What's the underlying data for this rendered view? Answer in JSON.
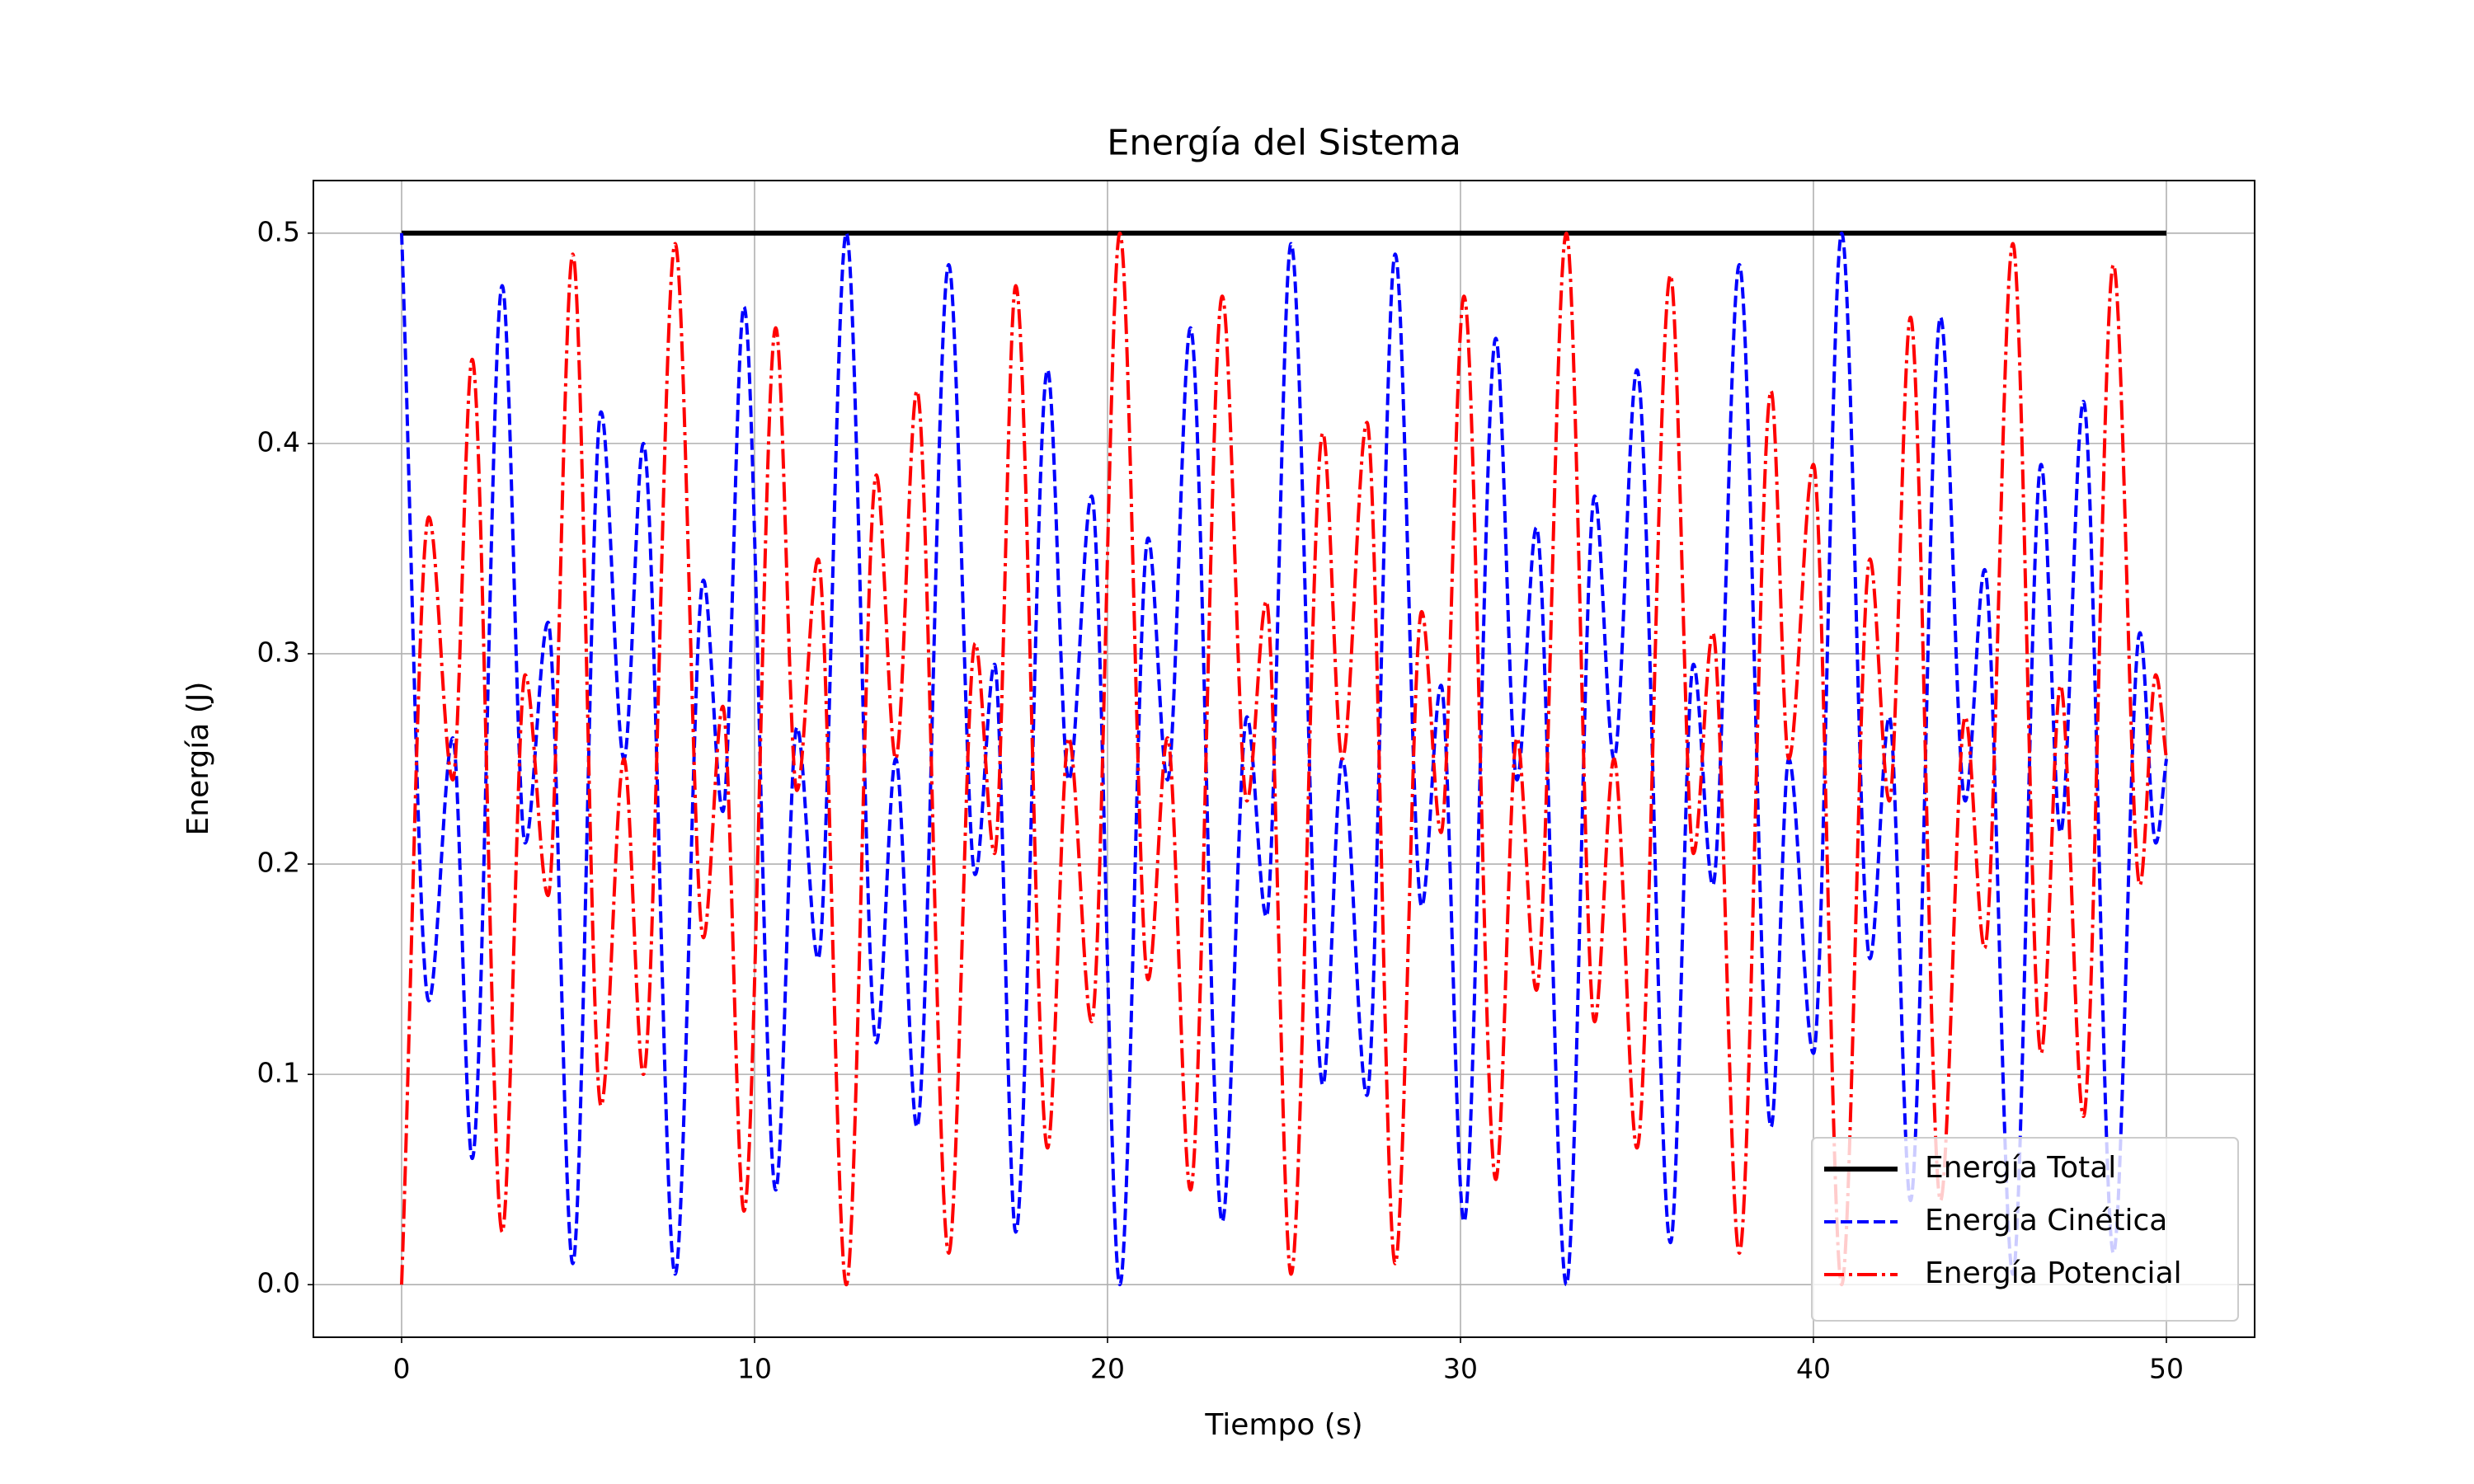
{
  "chart_data": {
    "type": "line",
    "title": "Energía del Sistema",
    "xlabel": "Tiempo (s)",
    "ylabel": "Energía (J)",
    "x": [
      0,
      0.77,
      1.45,
      2.0,
      2.85,
      3.5,
      4.15,
      4.85,
      5.65,
      6.3,
      6.85,
      7.75,
      8.55,
      9.1,
      9.7,
      10.6,
      11.2,
      11.8,
      12.6,
      13.45,
      14.0,
      14.6,
      15.5,
      16.25,
      16.8,
      17.4,
      18.3,
      18.9,
      19.55,
      20.35,
      21.15,
      21.7,
      22.35,
      23.25,
      23.95,
      24.5,
      25.2,
      26.1,
      26.65,
      27.35,
      28.15,
      28.9,
      29.45,
      30.1,
      31.0,
      31.6,
      32.15,
      33.0,
      33.8,
      34.35,
      35.0,
      35.95,
      36.6,
      37.15,
      37.9,
      38.8,
      39.3,
      40.0,
      40.8,
      41.6,
      42.15,
      42.75,
      43.6,
      44.3,
      44.85,
      45.65,
      46.45,
      47.0,
      47.65,
      48.5,
      49.25,
      49.7,
      50
    ],
    "series": [
      {
        "name": "Energía Total",
        "color": "#000000",
        "linestyle": "solid",
        "values": [
          0.5,
          0.5,
          0.5,
          0.5,
          0.5,
          0.5,
          0.5,
          0.5,
          0.5,
          0.5,
          0.5,
          0.5,
          0.5,
          0.5,
          0.5,
          0.5,
          0.5,
          0.5,
          0.5,
          0.5,
          0.5,
          0.5,
          0.5,
          0.5,
          0.5,
          0.5,
          0.5,
          0.5,
          0.5,
          0.5,
          0.5,
          0.5,
          0.5,
          0.5,
          0.5,
          0.5,
          0.5,
          0.5,
          0.5,
          0.5,
          0.5,
          0.5,
          0.5,
          0.5,
          0.5,
          0.5,
          0.5,
          0.5,
          0.5,
          0.5,
          0.5,
          0.5,
          0.5,
          0.5,
          0.5,
          0.5,
          0.5,
          0.5,
          0.5,
          0.5,
          0.5,
          0.5,
          0.5,
          0.5,
          0.5,
          0.5,
          0.5,
          0.5,
          0.5,
          0.5,
          0.5,
          0.5,
          0.5
        ]
      },
      {
        "name": "Energía Cinética",
        "color": "#0000ff",
        "linestyle": "dashed",
        "values": [
          0.5,
          0.135,
          0.26,
          0.06,
          0.475,
          0.21,
          0.315,
          0.01,
          0.415,
          0.25,
          0.4,
          0.005,
          0.335,
          0.225,
          0.465,
          0.045,
          0.265,
          0.155,
          0.5,
          0.115,
          0.25,
          0.075,
          0.485,
          0.195,
          0.295,
          0.025,
          0.435,
          0.24,
          0.375,
          0,
          0.355,
          0.24,
          0.455,
          0.03,
          0.27,
          0.175,
          0.495,
          0.095,
          0.25,
          0.09,
          0.49,
          0.18,
          0.285,
          0.03,
          0.45,
          0.24,
          0.36,
          0,
          0.375,
          0.25,
          0.435,
          0.02,
          0.295,
          0.19,
          0.485,
          0.075,
          0.25,
          0.11,
          0.5,
          0.155,
          0.27,
          0.04,
          0.46,
          0.23,
          0.34,
          0.005,
          0.39,
          0.215,
          0.42,
          0.015,
          0.31,
          0.21,
          0.25
        ]
      },
      {
        "name": "Energía Potencial",
        "color": "#ff0000",
        "linestyle": "dashdot",
        "values": [
          0,
          0.365,
          0.24,
          0.44,
          0.025,
          0.29,
          0.185,
          0.49,
          0.085,
          0.25,
          0.1,
          0.495,
          0.165,
          0.275,
          0.035,
          0.455,
          0.235,
          0.345,
          0,
          0.385,
          0.25,
          0.425,
          0.015,
          0.305,
          0.205,
          0.475,
          0.065,
          0.26,
          0.125,
          0.5,
          0.145,
          0.26,
          0.045,
          0.47,
          0.23,
          0.325,
          0.005,
          0.405,
          0.25,
          0.41,
          0.01,
          0.32,
          0.215,
          0.47,
          0.05,
          0.26,
          0.14,
          0.5,
          0.125,
          0.25,
          0.065,
          0.48,
          0.205,
          0.31,
          0.015,
          0.425,
          0.25,
          0.39,
          0,
          0.345,
          0.23,
          0.46,
          0.04,
          0.27,
          0.16,
          0.495,
          0.11,
          0.285,
          0.08,
          0.485,
          0.19,
          0.29,
          0.25
        ]
      }
    ],
    "xlim": [
      -2.5,
      52.5
    ],
    "ylim": [
      -0.025,
      0.525
    ],
    "xticks": [
      0,
      10,
      20,
      30,
      40,
      50
    ],
    "yticks": [
      {
        "value": 0,
        "label": "0.0"
      },
      0.1,
      0.2,
      0.3,
      0.4,
      0.5
    ],
    "grid": true,
    "legend": "lower right"
  }
}
